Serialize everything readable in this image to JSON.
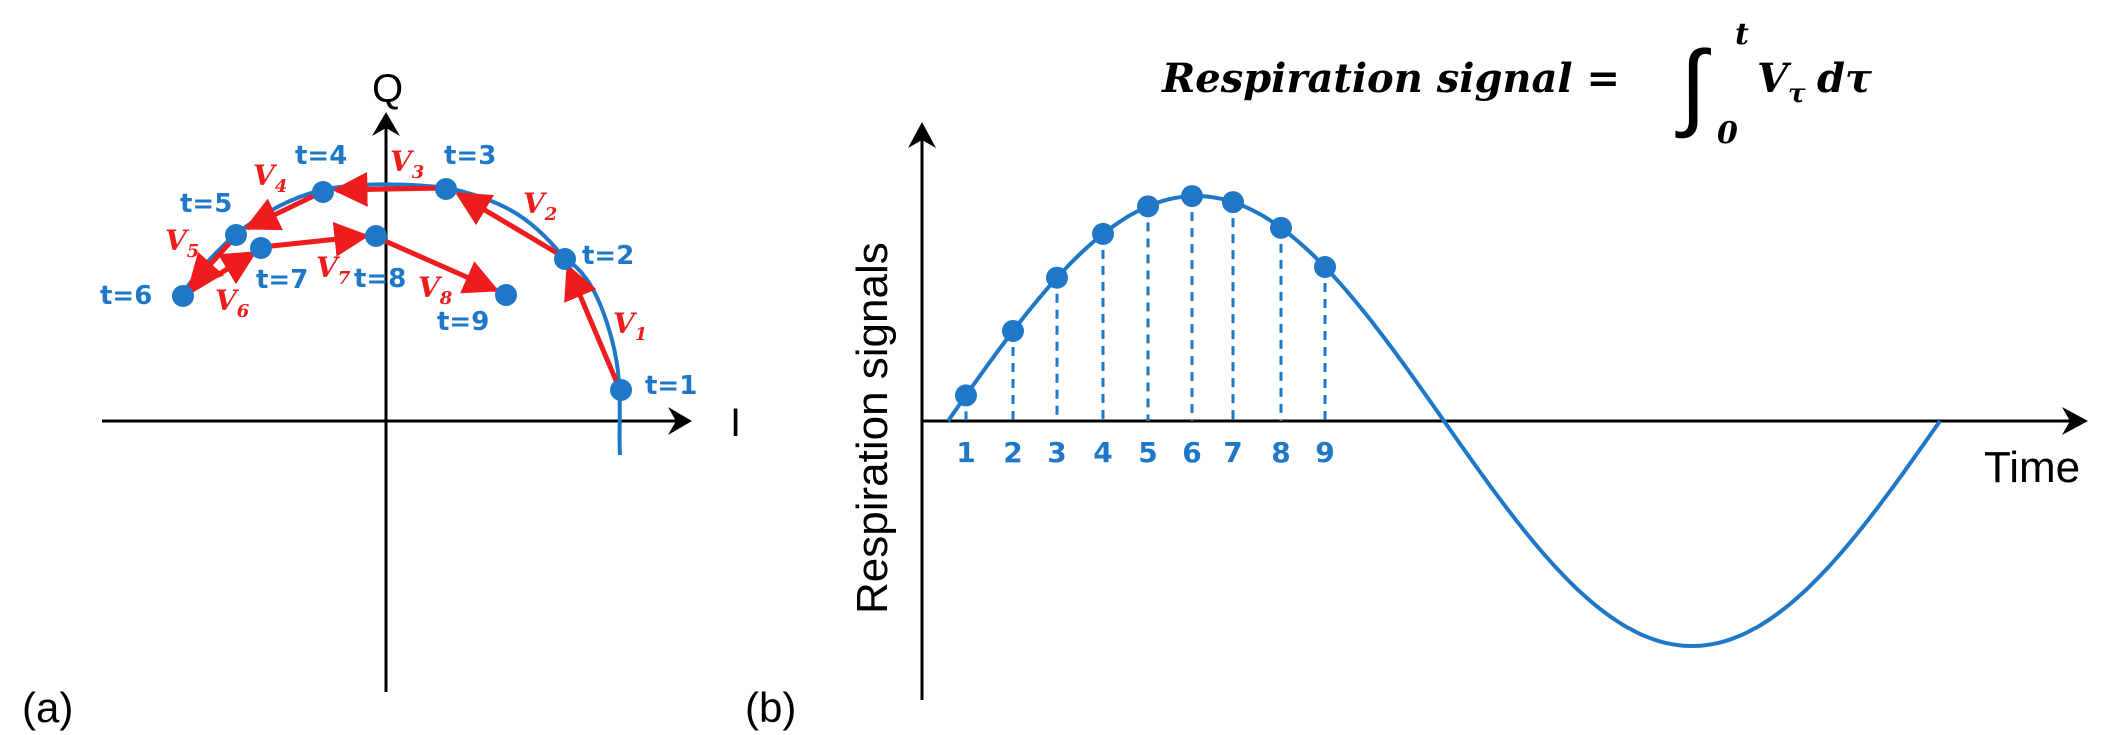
{
  "colors": {
    "point": "#1F77C8",
    "vector": "#EE1C1C",
    "axis": "#000000",
    "label_blue": "#1F77C8"
  },
  "panel_a": {
    "label": "(a)",
    "x_axis_label": "I",
    "y_axis_label": "Q",
    "points": [
      {
        "label": "t=1"
      },
      {
        "label": "t=2"
      },
      {
        "label": "t=3"
      },
      {
        "label": "t=4"
      },
      {
        "label": "t=5"
      },
      {
        "label": "t=6"
      },
      {
        "label": "t=7"
      },
      {
        "label": "t=8"
      },
      {
        "label": "t=9"
      }
    ],
    "vectors": [
      {
        "symbol": "V",
        "subscript": "1"
      },
      {
        "symbol": "V",
        "subscript": "2"
      },
      {
        "symbol": "V",
        "subscript": "3"
      },
      {
        "symbol": "V",
        "subscript": "4"
      },
      {
        "symbol": "V",
        "subscript": "5"
      },
      {
        "symbol": "V",
        "subscript": "6"
      },
      {
        "symbol": "V",
        "subscript": "7"
      },
      {
        "symbol": "V",
        "subscript": "8"
      }
    ]
  },
  "panel_b": {
    "label": "(b)",
    "x_axis_label": "Time",
    "y_axis_label": "Respiration signals",
    "formula": {
      "lhs": "Respiration signal =",
      "integral_sign": "∫",
      "upper_limit": "t",
      "lower_limit": "0",
      "integrand": "V",
      "integrand_subscript": "τ",
      "differential": "dτ"
    },
    "sample_labels": [
      "1",
      "2",
      "3",
      "4",
      "5",
      "6",
      "7",
      "8",
      "9"
    ]
  }
}
